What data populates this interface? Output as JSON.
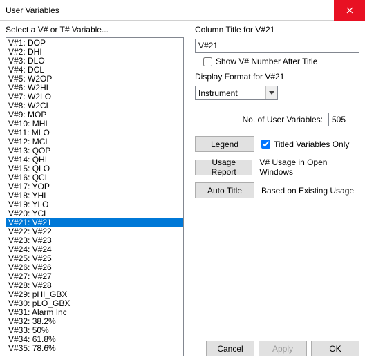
{
  "window": {
    "title": "User Variables"
  },
  "left": {
    "label": "Select a V# or T# Variable...",
    "selected_index": 20,
    "items": [
      "V#1: DOP",
      "V#2: DHI",
      "V#3: DLO",
      "V#4: DCL",
      "V#5: W2OP",
      "V#6: W2HI",
      "V#7: W2LO",
      "V#8: W2CL",
      "V#9: MOP",
      "V#10: MHI",
      "V#11: MLO",
      "V#12: MCL",
      "V#13: QOP",
      "V#14: QHI",
      "V#15: QLO",
      "V#16: QCL",
      "V#17: YOP",
      "V#18: YHI",
      "V#19: YLO",
      "V#20: YCL",
      "V#21: V#21",
      "V#22: V#22",
      "V#23: V#23",
      "V#24: V#24",
      "V#25: V#25",
      "V#26: V#26",
      "V#27: V#27",
      "V#28: V#28",
      "V#29: pHI_GBX",
      "V#30: pLO_GBX",
      "V#31: Alarm Inc",
      "V#32: 38.2%",
      "V#33: 50%",
      "V#34: 61.8%",
      "V#35: 78.6%"
    ]
  },
  "right": {
    "column_title_label": "Column Title for V#21",
    "column_title_value": "V#21",
    "show_vnum_label": "Show V# Number After Title",
    "show_vnum_checked": false,
    "display_format_label": "Display Format for V#21",
    "display_format_value": "Instrument",
    "no_vars_label": "No. of User Variables:",
    "no_vars_value": "505",
    "legend_btn": "Legend",
    "titled_only_label": "Titled Variables Only",
    "titled_only_checked": true,
    "usage_report_btn": "Usage Report",
    "usage_report_desc": "V# Usage in Open Windows",
    "auto_title_btn": "Auto Title",
    "auto_title_desc": "Based on Existing Usage"
  },
  "footer": {
    "cancel": "Cancel",
    "apply": "Apply",
    "ok": "OK"
  },
  "colors": {
    "selection_bg": "#0078d7",
    "close_bg": "#e81123",
    "border": "#828790",
    "btn_bg": "#e1e1e1",
    "btn_border": "#adadad"
  }
}
